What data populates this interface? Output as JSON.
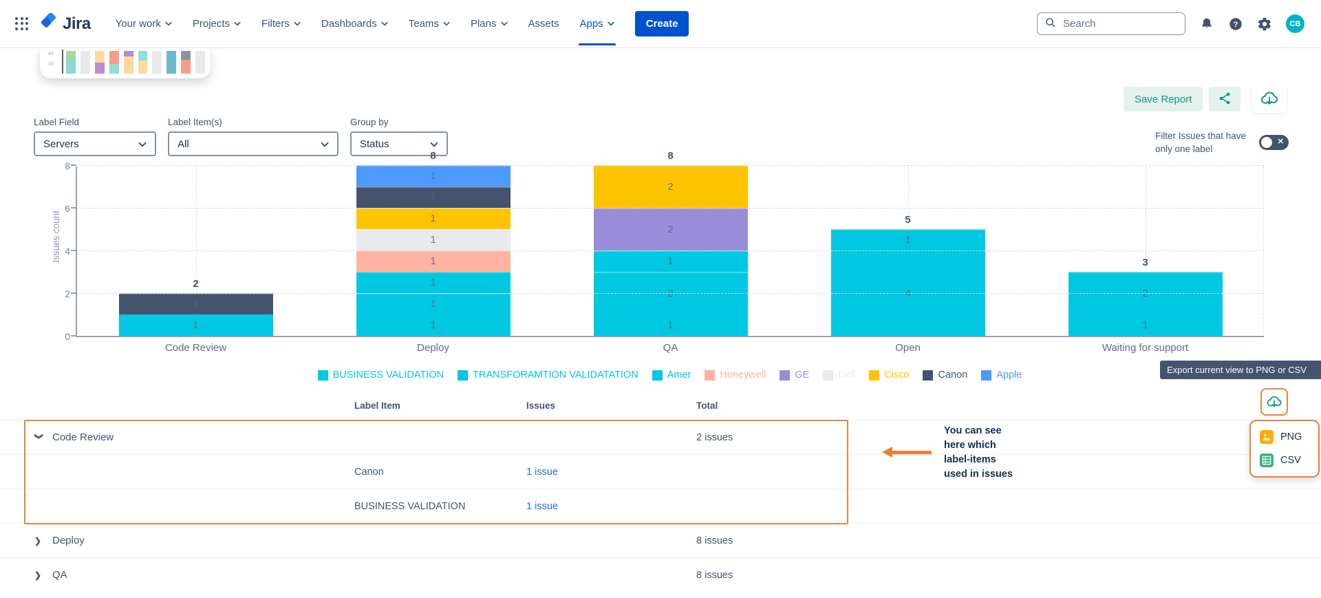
{
  "nav": {
    "logo_text": "Jira",
    "items": [
      {
        "label": "Your work",
        "chevron": true,
        "active": false
      },
      {
        "label": "Projects",
        "chevron": true,
        "active": false
      },
      {
        "label": "Filters",
        "chevron": true,
        "active": false
      },
      {
        "label": "Dashboards",
        "chevron": true,
        "active": false
      },
      {
        "label": "Teams",
        "chevron": true,
        "active": false
      },
      {
        "label": "Plans",
        "chevron": true,
        "active": false
      },
      {
        "label": "Assets",
        "chevron": false,
        "active": false
      },
      {
        "label": "Apps",
        "chevron": true,
        "active": true
      }
    ],
    "create_label": "Create",
    "search_placeholder": "Search",
    "avatar_initials": "CB"
  },
  "toolbar": {
    "save_report_label": "Save Report",
    "filter_toggle_line1": "Filter Issues that have",
    "filter_toggle_line2": "only one label",
    "toggle_state": "off"
  },
  "controls": [
    {
      "label": "Label Field",
      "value": "Servers"
    },
    {
      "label": "Label Item(s)",
      "value": "All"
    },
    {
      "label": "Group by",
      "value": "Status"
    }
  ],
  "chart_data": {
    "type": "bar",
    "stacked": true,
    "title": "",
    "xlabel": "",
    "ylabel": "Issues count",
    "ylim": [
      0,
      8
    ],
    "yticks": [
      0,
      2,
      4,
      6,
      8
    ],
    "grid": "dashed horizontal at yticks, dashed vertical at category centers",
    "legend_position": "bottom",
    "categories": [
      "Code Review",
      "Deploy",
      "QA",
      "Open",
      "Waiting for support"
    ],
    "totals": [
      2,
      8,
      8,
      5,
      3
    ],
    "legend": [
      {
        "label": "BUSINESS VALIDATION",
        "color": "#00C7E2"
      },
      {
        "label": "TRANSFORAMTION VALIDATATION",
        "color": "#00C7E2"
      },
      {
        "label": "Amer",
        "color": "#00C7E2"
      },
      {
        "label": "Honeywell",
        "color": "#FFB3A1"
      },
      {
        "label": "GE",
        "color": "#998DD9"
      },
      {
        "label": "Dell",
        "color": "#E9EAEE"
      },
      {
        "label": "Cisco",
        "color": "#FFC400"
      },
      {
        "label": "Canon",
        "color": "#44546F"
      },
      {
        "label": "Apple",
        "color": "#4C9AFF"
      }
    ],
    "bars": [
      {
        "category": "Code Review",
        "total": 2,
        "segments": [
          {
            "series": "BUSINESS VALIDATION",
            "value": 1,
            "color": "#00C7E2"
          },
          {
            "series": "Canon",
            "value": 1,
            "color": "#44546F"
          }
        ]
      },
      {
        "category": "Deploy",
        "total": 8,
        "segments": [
          {
            "series": "BUSINESS VALIDATION",
            "value": 1,
            "color": "#00C7E2"
          },
          {
            "series": "TRANSFORAMTION VALIDATATION",
            "value": 1,
            "color": "#00C7E2"
          },
          {
            "series": "Amer",
            "value": 1,
            "color": "#00C7E2"
          },
          {
            "series": "Honeywell",
            "value": 1,
            "color": "#FFB3A1"
          },
          {
            "series": "Dell",
            "value": 1,
            "color": "#E9EAEE"
          },
          {
            "series": "Cisco",
            "value": 1,
            "color": "#FFC400"
          },
          {
            "series": "Canon",
            "value": 1,
            "color": "#44546F"
          },
          {
            "series": "Apple",
            "value": 1,
            "color": "#4C9AFF"
          }
        ]
      },
      {
        "category": "QA",
        "total": 8,
        "segments": [
          {
            "series": "BUSINESS VALIDATION",
            "value": 1,
            "color": "#00C7E2"
          },
          {
            "series": "TRANSFORAMTION VALIDATATION",
            "value": 2,
            "color": "#00C7E2"
          },
          {
            "series": "Amer",
            "value": 1,
            "color": "#00C7E2"
          },
          {
            "series": "GE",
            "value": 2,
            "color": "#998DD9"
          },
          {
            "series": "Cisco",
            "value": 2,
            "color": "#FFC400"
          }
        ]
      },
      {
        "category": "Open",
        "total": 5,
        "segments": [
          {
            "series": "BUSINESS VALIDATION",
            "value": 4,
            "color": "#00C7E2"
          },
          {
            "series": "TRANSFORAMTION VALIDATATION",
            "value": 1,
            "color": "#00C7E2"
          }
        ]
      },
      {
        "category": "Waiting for support",
        "total": 3,
        "segments": [
          {
            "series": "BUSINESS VALIDATION",
            "value": 1,
            "color": "#00C7E2"
          },
          {
            "series": "TRANSFORAMTION VALIDATATION",
            "value": 2,
            "color": "#00C7E2"
          }
        ]
      }
    ]
  },
  "export_tooltip": "Export current view to PNG or CSV",
  "table": {
    "headers": [
      "Label Item",
      "Issues",
      "Total"
    ],
    "rows": [
      {
        "type": "group",
        "expanded": true,
        "name": "Code Review",
        "total": "2 issues"
      },
      {
        "type": "child",
        "label_item": "Canon",
        "issues": "1 issue"
      },
      {
        "type": "child",
        "label_item": "BUSINESS VALIDATION",
        "issues": "1 issue"
      },
      {
        "type": "group",
        "expanded": false,
        "name": "Deploy",
        "total": "8 issues"
      },
      {
        "type": "group",
        "expanded": false,
        "name": "QA",
        "total": "8 issues"
      }
    ]
  },
  "annotation": {
    "lines": [
      "You can see",
      "here which",
      "label-items",
      "used in issues"
    ],
    "arrow_direction": "left"
  },
  "export_menu": {
    "items": [
      {
        "label": "PNG",
        "icon": "image-icon"
      },
      {
        "label": "CSV",
        "icon": "table-icon"
      }
    ]
  },
  "mini_chart": {
    "yticks": [
      "40",
      "20"
    ],
    "columns": [
      [
        [
          "#A6D99A",
          11
        ],
        [
          "#8FD8CE",
          22
        ]
      ],
      [
        [
          "#E9E9E9",
          33
        ]
      ],
      [
        [
          "#FCDA9C",
          17
        ],
        [
          "#C08CC9",
          16
        ]
      ],
      [
        [
          "#F89C86",
          19
        ],
        [
          "#8FE0D6",
          14
        ]
      ],
      [
        [
          "#B58CC9",
          8
        ],
        [
          "#FCDA9C",
          25
        ]
      ],
      [
        [
          "#8FE0D6",
          14
        ],
        [
          "#FCDA9C",
          19
        ]
      ],
      [
        [
          "#E9E9E9",
          33
        ]
      ],
      [
        [
          "#6FB9CE",
          33
        ]
      ],
      [
        [
          "#8A949E",
          13
        ],
        [
          "#F89C86",
          20
        ]
      ],
      [
        [
          "#E9E9E9",
          33
        ]
      ]
    ]
  },
  "colors": {
    "accent_blue": "#0052CC",
    "green": "#17947E",
    "orange": "#E8833A",
    "cyan": "#00C7E2",
    "navy_text": "#42526E",
    "link_blue": "#2E6AD2",
    "png_icon": "#FFAB00",
    "csv_icon": "#36B37E"
  }
}
